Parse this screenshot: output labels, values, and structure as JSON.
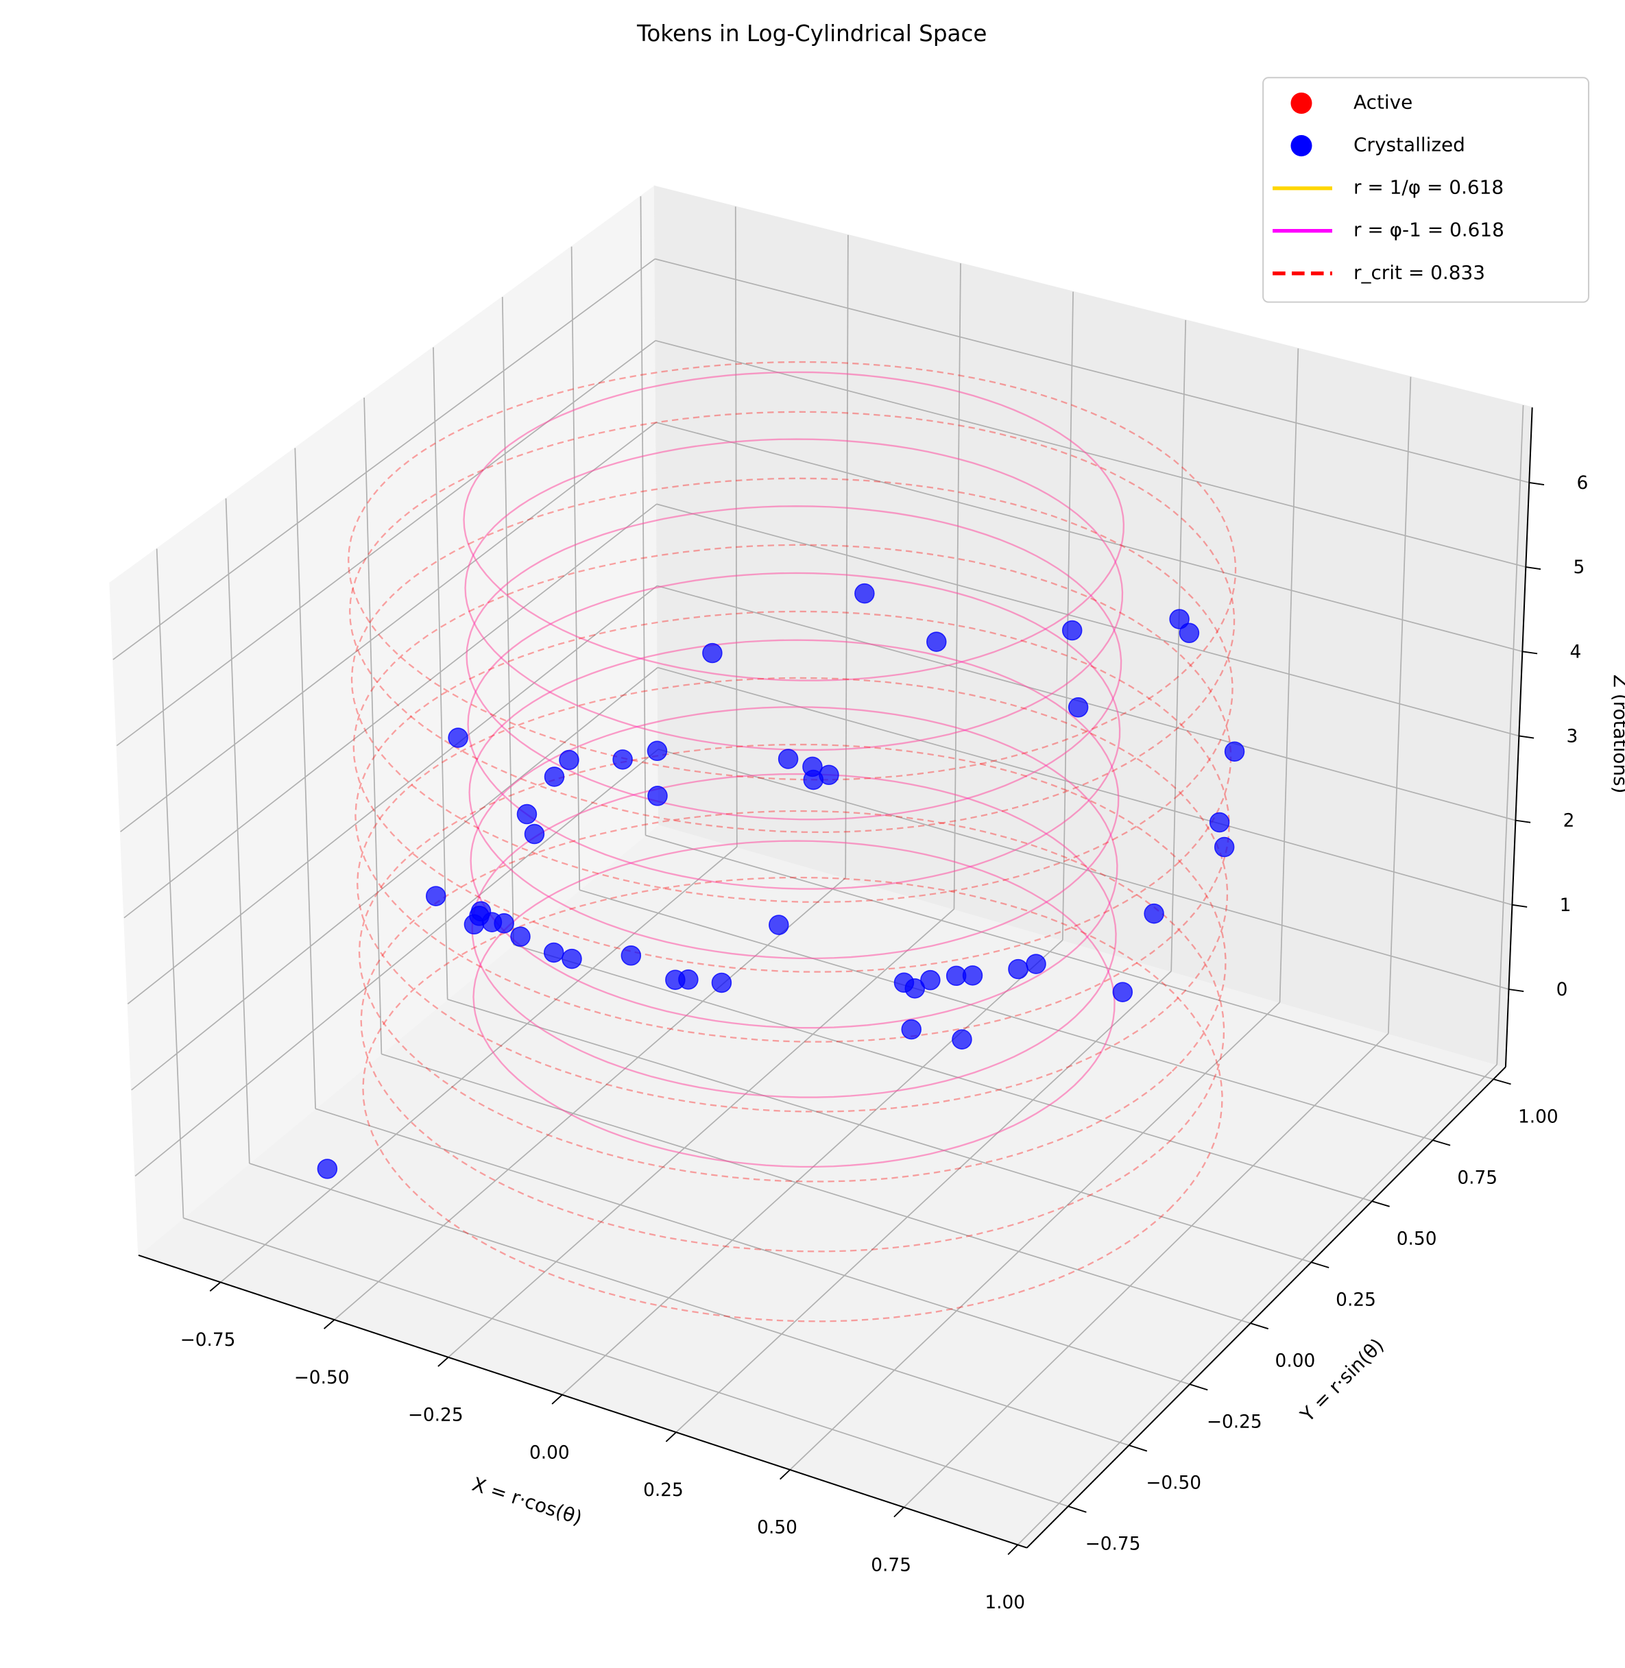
{
  "chart_data": {
    "type": "scatter3d",
    "title": "Tokens in Log-Cylindrical Space",
    "xlabel": "X = r·cos(θ)",
    "ylabel": "Y = r·sin(θ)",
    "zlabel": "Z (rotations)",
    "xlim": [
      -0.93,
      1.02
    ],
    "ylim": [
      -0.92,
      1.05
    ],
    "zlim": [
      -0.92,
      6.89
    ],
    "xticks": [
      {
        "value": -0.75,
        "label": "−0.75"
      },
      {
        "value": -0.5,
        "label": "−0.50"
      },
      {
        "value": -0.25,
        "label": "−0.25"
      },
      {
        "value": 0,
        "label": "0.00"
      },
      {
        "value": 0.25,
        "label": "0.25"
      },
      {
        "value": 0.5,
        "label": "0.50"
      },
      {
        "value": 0.75,
        "label": "0.75"
      },
      {
        "value": 1,
        "label": "1.00"
      }
    ],
    "yticks": [
      {
        "value": -0.75,
        "label": "−0.75"
      },
      {
        "value": -0.5,
        "label": "−0.50"
      },
      {
        "value": -0.25,
        "label": "−0.25"
      },
      {
        "value": 0,
        "label": "0.00"
      },
      {
        "value": 0.25,
        "label": "0.25"
      },
      {
        "value": 0.5,
        "label": "0.50"
      },
      {
        "value": 0.75,
        "label": "0.75"
      },
      {
        "value": 1,
        "label": "1.00"
      }
    ],
    "zticks": [
      0,
      1,
      2,
      3,
      4,
      5,
      6
    ],
    "grid": true,
    "legend": "upper right",
    "series": [
      {
        "name": "Active",
        "color": "#ff0000",
        "x": [],
        "y": [],
        "z": []
      },
      {
        "name": "Crystallized",
        "color": "#0000ff",
        "x": [
          0.148,
          -0.182,
          0.304,
          0.596,
          0.665,
          0.687,
          -0.742,
          -0.38,
          0.612,
          -0.304,
          -0.498,
          -0.531,
          -0.017,
          0.036,
          0.072,
          0.038,
          -0.304,
          0.792,
          -0.593,
          -0.577,
          0.763,
          0.775,
          -0.799,
          -0.699,
          -0.703,
          -0.715,
          -0.675,
          -0.648,
          -0.612,
          0.785,
          -0.038,
          -0.538,
          -0.498,
          -0.366,
          -0.268,
          -0.239,
          -0.165,
          0.239,
          0.263,
          0.297,
          0.354,
          0.39,
          0.49,
          0.529,
          0.72,
          0.256,
          0.368,
          -0.696
        ],
        "y": [
          0,
          0,
          0,
          0,
          0.3,
          0.3,
          0,
          0,
          0,
          0,
          0,
          0,
          0,
          0,
          0,
          0,
          0,
          0.3,
          0,
          0,
          0.3,
          0.3,
          0,
          0,
          0,
          0,
          0,
          0,
          0,
          0,
          0,
          0,
          0,
          0,
          0,
          0,
          0,
          0,
          0,
          0,
          0,
          0,
          0,
          0,
          0,
          0,
          0,
          -0.6
        ],
        "z": [
          6.21,
          5.01,
          5.88,
          6.45,
          5.9,
          5.77,
          3.14,
          3.45,
          5.58,
          3.67,
          3.26,
          3.01,
          4.02,
          4.01,
          3.97,
          3.86,
          3.14,
          4.54,
          2.47,
          2.26,
          3.67,
          3.4,
          1.17,
          1.15,
          1.09,
          0.97,
          1.06,
          1.09,
          0.99,
          3.45,
          2.04,
          0.92,
          0.91,
          1.16,
          1.03,
          1.08,
          1.16,
          1.8,
          1.77,
          1.92,
          2.06,
          2.12,
          2.35,
          2.47,
          2.44,
          1.28,
          1.34,
          -0.33
        ]
      }
    ],
    "rings": [
      {
        "name": "r = 1/φ = 0.618",
        "color": "#ffd700",
        "radius": 0.618,
        "dashed": false,
        "z": [
          1.2,
          2.0,
          2.8,
          3.6,
          4.4,
          5.2,
          6.0,
          6.8
        ]
      },
      {
        "name": "r = φ-1 = 0.618",
        "color": "#ff00ff",
        "radius": 0.618,
        "dashed": false,
        "z": [
          1.2,
          2.0,
          2.8,
          3.6,
          4.4,
          5.2,
          6.0,
          6.8
        ]
      },
      {
        "name": "r_crit = 0.833",
        "color": "#ff0000",
        "radius": 0.833,
        "dashed": true,
        "z": [
          0.1,
          0.9,
          1.7,
          2.5,
          3.3,
          4.1,
          4.9,
          5.7,
          6.3
        ]
      }
    ]
  }
}
